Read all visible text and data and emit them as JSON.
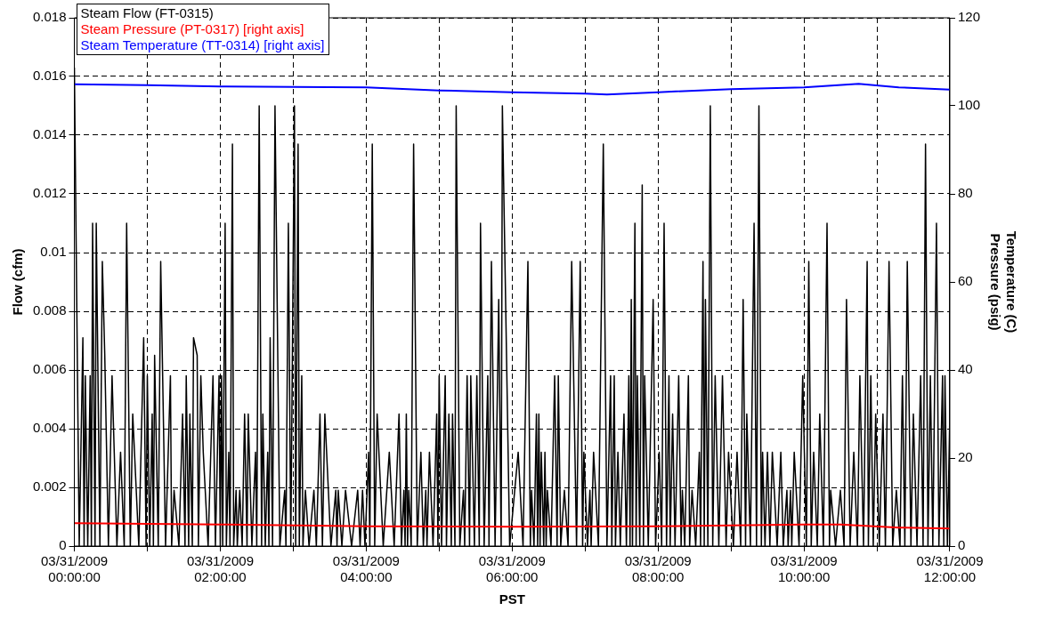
{
  "chart_data": {
    "type": "line",
    "xlabel": "PST",
    "ylabel": "Flow (cfm)",
    "y2label": "Temperature (C)\nPressure (psig)",
    "xlim": [
      "2009-03-31T00:00",
      "2009-03-31T12:00"
    ],
    "xticks": [
      {
        "value": "2009-03-31T00:00",
        "label": "03/31/2009 00:00:00"
      },
      {
        "value": "2009-03-31T01:00",
        "label": null
      },
      {
        "value": "2009-03-31T02:00",
        "label": "03/31/2009 02:00:00"
      },
      {
        "value": "2009-03-31T03:00",
        "label": null
      },
      {
        "value": "2009-03-31T04:00",
        "label": "03/31/2009 04:00:00"
      },
      {
        "value": "2009-03-31T05:00",
        "label": null
      },
      {
        "value": "2009-03-31T06:00",
        "label": "03/31/2009 06:00:00"
      },
      {
        "value": "2009-03-31T07:00",
        "label": null
      },
      {
        "value": "2009-03-31T08:00",
        "label": "03/31/2009 08:00:00"
      },
      {
        "value": "2009-03-31T09:00",
        "label": null
      },
      {
        "value": "2009-03-31T10:00",
        "label": "03/31/2009 10:00:00"
      },
      {
        "value": "2009-03-31T11:00",
        "label": null
      },
      {
        "value": "2009-03-31T12:00",
        "label": "03/31/2009 12:00:00"
      }
    ],
    "ylim": [
      0,
      0.018
    ],
    "yticks": [
      0,
      0.002,
      0.004,
      0.006,
      0.008,
      0.01,
      0.012,
      0.014,
      0.016,
      0.018
    ],
    "y2lim": [
      0,
      120
    ],
    "y2ticks": [
      0,
      20,
      40,
      60,
      80,
      100,
      120
    ],
    "grid": true,
    "legend": "top left",
    "marker": "none",
    "series": [
      {
        "name": "Steam Flow (FT-0315)",
        "color": "#000000",
        "x": [
          "2009-03-31T00:00",
          "2009-03-31T00:04",
          "2009-03-31T00:07",
          "2009-03-31T00:08",
          "2009-03-31T00:09",
          "2009-03-31T00:11",
          "2009-03-31T00:13",
          "2009-03-31T00:14",
          "2009-03-31T00:15",
          "2009-03-31T00:17",
          "2009-03-31T00:18",
          "2009-03-31T00:21",
          "2009-03-31T00:23",
          "2009-03-31T00:25",
          "2009-03-31T00:28",
          "2009-03-31T00:31",
          "2009-03-31T00:35",
          "2009-03-31T00:38",
          "2009-03-31T00:41",
          "2009-03-31T00:43",
          "2009-03-31T00:46",
          "2009-03-31T00:48",
          "2009-03-31T00:53",
          "2009-03-31T00:57",
          "2009-03-31T00:59",
          "2009-03-31T01:00",
          "2009-03-31T01:02",
          "2009-03-31T01:04",
          "2009-03-31T01:05",
          "2009-03-31T01:06",
          "2009-03-31T01:09",
          "2009-03-31T01:11",
          "2009-03-31T01:15",
          "2009-03-31T01:19",
          "2009-03-31T01:20",
          "2009-03-31T01:22",
          "2009-03-31T01:26",
          "2009-03-31T01:29",
          "2009-03-31T01:31",
          "2009-03-31T01:32",
          "2009-03-31T01:34",
          "2009-03-31T01:35",
          "2009-03-31T01:37",
          "2009-03-31T01:38",
          "2009-03-31T01:41",
          "2009-03-31T01:42",
          "2009-03-31T01:44",
          "2009-03-31T01:46",
          "2009-03-31T01:50",
          "2009-03-31T01:54",
          "2009-03-31T01:56",
          "2009-03-31T01:59",
          "2009-03-31T02:00",
          "2009-03-31T02:01",
          "2009-03-31T02:02",
          "2009-03-31T02:04",
          "2009-03-31T02:05",
          "2009-03-31T02:07",
          "2009-03-31T02:08",
          "2009-03-31T02:10",
          "2009-03-31T02:11",
          "2009-03-31T02:13",
          "2009-03-31T02:14",
          "2009-03-31T02:16",
          "2009-03-31T02:18",
          "2009-03-31T02:20",
          "2009-03-31T02:22",
          "2009-03-31T02:23",
          "2009-03-31T02:26",
          "2009-03-31T02:29",
          "2009-03-31T02:30",
          "2009-03-31T02:32",
          "2009-03-31T02:34",
          "2009-03-31T02:35",
          "2009-03-31T02:37",
          "2009-03-31T02:39",
          "2009-03-31T02:40",
          "2009-03-31T02:41",
          "2009-03-31T02:43",
          "2009-03-31T02:45",
          "2009-03-31T02:49",
          "2009-03-31T02:53",
          "2009-03-31T02:54",
          "2009-03-31T02:56",
          "2009-03-31T02:58",
          "2009-03-31T03:01",
          "2009-03-31T03:02",
          "2009-03-31T03:04",
          "2009-03-31T03:05",
          "2009-03-31T03:07",
          "2009-03-31T03:08",
          "2009-03-31T03:10",
          "2009-03-31T03:13",
          "2009-03-31T03:17",
          "2009-03-31T03:19",
          "2009-03-31T03:22",
          "2009-03-31T03:24",
          "2009-03-31T03:26",
          "2009-03-31T03:31",
          "2009-03-31T03:35",
          "2009-03-31T03:36",
          "2009-03-31T03:37",
          "2009-03-31T03:40",
          "2009-03-31T03:43",
          "2009-03-31T03:48",
          "2009-03-31T03:53",
          "2009-03-31T03:55",
          "2009-03-31T03:57",
          "2009-03-31T03:59",
          "2009-03-31T04:02",
          "2009-03-31T04:03",
          "2009-03-31T04:05",
          "2009-03-31T04:07",
          "2009-03-31T04:09",
          "2009-03-31T04:14",
          "2009-03-31T04:19",
          "2009-03-31T04:23",
          "2009-03-31T04:27",
          "2009-03-31T04:29",
          "2009-03-31T04:31",
          "2009-03-31T04:32",
          "2009-03-31T04:33",
          "2009-03-31T04:34",
          "2009-03-31T04:35",
          "2009-03-31T04:37",
          "2009-03-31T04:39",
          "2009-03-31T04:42",
          "2009-03-31T04:45",
          "2009-03-31T04:47",
          "2009-03-31T04:49",
          "2009-03-31T04:50",
          "2009-03-31T04:52",
          "2009-03-31T04:55",
          "2009-03-31T04:58",
          "2009-03-31T04:59",
          "2009-03-31T05:00",
          "2009-03-31T05:02",
          "2009-03-31T05:05",
          "2009-03-31T05:06",
          "2009-03-31T05:08",
          "2009-03-31T05:10",
          "2009-03-31T05:11",
          "2009-03-31T05:13",
          "2009-03-31T05:14",
          "2009-03-31T05:17",
          "2009-03-31T05:20",
          "2009-03-31T05:21",
          "2009-03-31T05:23",
          "2009-03-31T05:25",
          "2009-03-31T05:26",
          "2009-03-31T05:29",
          "2009-03-31T05:31",
          "2009-03-31T05:33",
          "2009-03-31T05:34",
          "2009-03-31T05:37",
          "2009-03-31T05:40",
          "2009-03-31T05:41",
          "2009-03-31T05:43",
          "2009-03-31T05:46",
          "2009-03-31T05:49",
          "2009-03-31T05:51",
          "2009-03-31T05:52",
          "2009-03-31T05:58",
          "2009-03-31T06:05",
          "2009-03-31T06:09",
          "2009-03-31T06:13",
          "2009-03-31T06:15",
          "2009-03-31T06:16",
          "2009-03-31T06:18",
          "2009-03-31T06:20",
          "2009-03-31T06:21",
          "2009-03-31T06:22",
          "2009-03-31T06:23",
          "2009-03-31T06:24",
          "2009-03-31T06:26",
          "2009-03-31T06:27",
          "2009-03-31T06:28",
          "2009-03-31T06:29",
          "2009-03-31T06:32",
          "2009-03-31T06:35",
          "2009-03-31T06:37",
          "2009-03-31T06:38",
          "2009-03-31T06:40",
          "2009-03-31T06:43",
          "2009-03-31T06:46",
          "2009-03-31T06:49",
          "2009-03-31T06:53",
          "2009-03-31T06:56",
          "2009-03-31T06:58",
          "2009-03-31T06:59",
          "2009-03-31T07:02",
          "2009-03-31T07:04",
          "2009-03-31T07:05",
          "2009-03-31T07:07",
          "2009-03-31T07:11",
          "2009-03-31T07:15",
          "2009-03-31T07:18",
          "2009-03-31T07:21",
          "2009-03-31T07:22",
          "2009-03-31T07:24",
          "2009-03-31T07:25",
          "2009-03-31T07:27",
          "2009-03-31T07:29",
          "2009-03-31T07:32",
          "2009-03-31T07:34",
          "2009-03-31T07:36",
          "2009-03-31T07:37",
          "2009-03-31T07:38",
          "2009-03-31T07:39",
          "2009-03-31T07:41",
          "2009-03-31T07:42",
          "2009-03-31T07:43",
          "2009-03-31T07:45",
          "2009-03-31T07:47",
          "2009-03-31T07:48",
          "2009-03-31T07:49",
          "2009-03-31T07:52",
          "2009-03-31T07:56",
          "2009-03-31T07:58",
          "2009-03-31T08:01",
          "2009-03-31T08:03",
          "2009-03-31T08:05",
          "2009-03-31T08:07",
          "2009-03-31T08:09",
          "2009-03-31T08:10",
          "2009-03-31T08:12",
          "2009-03-31T08:14",
          "2009-03-31T08:17",
          "2009-03-31T08:19",
          "2009-03-31T08:20",
          "2009-03-31T08:22",
          "2009-03-31T08:25",
          "2009-03-31T08:26",
          "2009-03-31T08:28",
          "2009-03-31T08:31",
          "2009-03-31T08:34",
          "2009-03-31T08:35",
          "2009-03-31T08:37",
          "2009-03-31T08:38",
          "2009-03-31T08:39",
          "2009-03-31T08:41",
          "2009-03-31T08:43",
          "2009-03-31T08:45",
          "2009-03-31T08:47",
          "2009-03-31T08:50",
          "2009-03-31T08:53",
          "2009-03-31T08:56",
          "2009-03-31T08:58",
          "2009-03-31T09:02",
          "2009-03-31T09:05",
          "2009-03-31T09:08",
          "2009-03-31T09:10",
          "2009-03-31T09:12",
          "2009-03-31T09:13",
          "2009-03-31T09:16",
          "2009-03-31T09:19",
          "2009-03-31T09:21",
          "2009-03-31T09:23",
          "2009-03-31T09:25",
          "2009-03-31T09:26",
          "2009-03-31T09:28",
          "2009-03-31T09:30",
          "2009-03-31T09:32",
          "2009-03-31T09:34",
          "2009-03-31T09:38",
          "2009-03-31T09:41",
          "2009-03-31T09:43",
          "2009-03-31T09:46",
          "2009-03-31T09:47",
          "2009-03-31T09:49",
          "2009-03-31T09:50",
          "2009-03-31T09:52",
          "2009-03-31T09:56",
          "2009-03-31T09:59",
          "2009-03-31T10:02",
          "2009-03-31T10:04",
          "2009-03-31T10:06",
          "2009-03-31T10:08",
          "2009-03-31T10:11",
          "2009-03-31T10:13",
          "2009-03-31T10:16",
          "2009-03-31T10:19",
          "2009-03-31T10:21",
          "2009-03-31T10:22",
          "2009-03-31T10:26",
          "2009-03-31T10:30",
          "2009-03-31T10:33",
          "2009-03-31T10:35",
          "2009-03-31T10:38",
          "2009-03-31T10:41",
          "2009-03-31T10:44",
          "2009-03-31T10:46",
          "2009-03-31T10:49",
          "2009-03-31T10:52",
          "2009-03-31T10:53",
          "2009-03-31T10:55",
          "2009-03-31T10:57",
          "2009-03-31T10:59",
          "2009-03-31T11:02",
          "2009-03-31T11:05",
          "2009-03-31T11:07",
          "2009-03-31T11:10",
          "2009-03-31T11:13",
          "2009-03-31T11:16",
          "2009-03-31T11:19",
          "2009-03-31T11:21",
          "2009-03-31T11:23",
          "2009-03-31T11:25",
          "2009-03-31T11:28",
          "2009-03-31T11:30",
          "2009-03-31T11:33",
          "2009-03-31T11:36",
          "2009-03-31T11:38",
          "2009-03-31T11:40",
          "2009-03-31T11:42",
          "2009-03-31T11:44",
          "2009-03-31T11:46",
          "2009-03-31T11:49",
          "2009-03-31T11:51",
          "2009-03-31T11:54",
          "2009-03-31T11:55",
          "2009-03-31T11:56",
          "2009-03-31T11:58",
          "2009-03-31T12:00"
        ],
        "values": [
          0.0163,
          0,
          0.0071,
          0,
          0.0058,
          0,
          0.0058,
          0,
          0.011,
          0,
          0.011,
          0,
          0.0097,
          0.0065,
          0,
          0.0058,
          0,
          0.0032,
          0,
          0.011,
          0,
          0.0045,
          0,
          0.0071,
          0,
          0.0058,
          0,
          0.0045,
          0,
          0.0065,
          0,
          0.0097,
          0,
          0.0058,
          0,
          0.0019,
          0,
          0.0045,
          0,
          0.0058,
          0,
          0.0045,
          0,
          0.0071,
          0.0065,
          0,
          0.0058,
          0.0032,
          0,
          0.0058,
          0,
          0.0058,
          0,
          0.0058,
          0,
          0.011,
          0,
          0.0032,
          0,
          0.0137,
          0,
          0.0019,
          0,
          0.0019,
          0,
          0.0045,
          0,
          0.0045,
          0,
          0.0032,
          0,
          0.015,
          0,
          0.0045,
          0,
          0.0032,
          0,
          0.0071,
          0,
          0.015,
          0,
          0.0019,
          0,
          0.011,
          0,
          0.015,
          0,
          0.0137,
          0,
          0.0058,
          0,
          0.0019,
          0,
          0.0019,
          0,
          0.0045,
          0,
          0.0045,
          0,
          0.0019,
          0,
          0.0019,
          0,
          0.0019,
          0,
          0.0019,
          0,
          0.0019,
          0,
          0.0032,
          0,
          0.0137,
          0,
          0.0045,
          0,
          0.0032,
          0,
          0.0045,
          0,
          0.0019,
          0,
          0.0045,
          0,
          0.0019,
          0,
          0.0137,
          0,
          0.0032,
          0,
          0.0019,
          0,
          0.0032,
          0,
          0.0045,
          0,
          0.0058,
          0,
          0.0058,
          0,
          0.0045,
          0,
          0.0045,
          0,
          0.015,
          0,
          0.0019,
          0,
          0.0058,
          0,
          0.0058,
          0,
          0.0058,
          0,
          0.011,
          0,
          0.0058,
          0,
          0.0097,
          0,
          0.0084,
          0,
          0.015,
          0,
          0.0032,
          0,
          0.0097,
          0,
          0.0019,
          0,
          0.0045,
          0,
          0.0045,
          0,
          0.0032,
          0,
          0.0032,
          0,
          0.0019,
          0,
          0.0058,
          0,
          0.0058,
          0,
          0.0019,
          0,
          0.0097,
          0,
          0.0097,
          0,
          0.0032,
          0,
          0.0019,
          0,
          0.0032,
          0,
          0.0137,
          0,
          0.0058,
          0,
          0.0058,
          0,
          0.0032,
          0,
          0.0045,
          0,
          0.0058,
          0,
          0.0084,
          0,
          0.011,
          0,
          0.0058,
          0,
          0.0123,
          0,
          0.0058,
          0,
          0.0084,
          0,
          0.0032,
          0,
          0.011,
          0,
          0.0058,
          0,
          0.0045,
          0,
          0.0058,
          0,
          0.0019,
          0,
          0.0058,
          0,
          0.0019,
          0,
          0.0032,
          0,
          0.0097,
          0,
          0.0084,
          0,
          0.015,
          0,
          0.0058,
          0,
          0.0058,
          0,
          0.0032,
          0,
          0.0032,
          0,
          0.0084,
          0,
          0.0045,
          0,
          0.011,
          0,
          0.015,
          0,
          0.0032,
          0,
          0.0032,
          0,
          0.0032,
          0,
          0.0032,
          0,
          0.0019,
          0,
          0.0019,
          0,
          0.0032,
          0,
          0.0058,
          0,
          0.0097,
          0,
          0.0032,
          0,
          0.0045,
          0,
          0.011,
          0,
          0.0019,
          0,
          0.0019,
          0,
          0.0084,
          0,
          0.0032,
          0,
          0.0058,
          0,
          0.0097,
          0,
          0.0058,
          0,
          0.0045,
          0,
          0.0045,
          0,
          0.0097,
          0,
          0.0019,
          0,
          0.0058,
          0,
          0.0097,
          0,
          0.0045,
          0,
          0.0058,
          0,
          0.0137,
          0,
          0.0058,
          0,
          0.011,
          0,
          0.0058,
          0,
          0.0058,
          0,
          0.0045
        ]
      },
      {
        "name": "Steam Pressure (PT-0317) [right axis]",
        "color": "#ff0000",
        "axis": "y2",
        "x": [
          "2009-03-31T00:00",
          "2009-03-31T02:00",
          "2009-03-31T04:00",
          "2009-03-31T06:00",
          "2009-03-31T08:00",
          "2009-03-31T10:00",
          "2009-03-31T10:30",
          "2009-03-31T11:18",
          "2009-03-31T12:00"
        ],
        "values": [
          5.2,
          4.9,
          4.5,
          4.4,
          4.5,
          4.9,
          4.9,
          4.2,
          4.0
        ]
      },
      {
        "name": "Steam Temperature (TT-0314) [right axis]",
        "color": "#0000ff",
        "axis": "y2",
        "x": [
          "2009-03-31T00:00",
          "2009-03-31T01:00",
          "2009-03-31T02:00",
          "2009-03-31T03:00",
          "2009-03-31T04:00",
          "2009-03-31T05:00",
          "2009-03-31T06:00",
          "2009-03-31T07:00",
          "2009-03-31T07:18",
          "2009-03-31T08:00",
          "2009-03-31T09:00",
          "2009-03-31T10:00",
          "2009-03-31T10:45",
          "2009-03-31T11:18",
          "2009-03-31T12:00"
        ],
        "values": [
          104.9,
          104.7,
          104.4,
          104.3,
          104.2,
          103.5,
          103.1,
          102.8,
          102.6,
          103.1,
          103.8,
          104.2,
          105,
          104.2,
          103.7
        ]
      }
    ]
  }
}
